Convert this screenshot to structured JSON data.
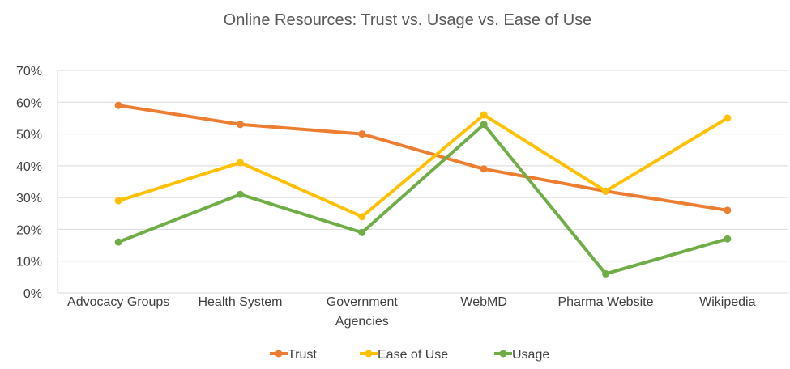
{
  "chart_data": {
    "type": "line",
    "title": "Online Resources: Trust vs. Usage vs. Ease of Use",
    "categories": [
      [
        "Advocacy Groups"
      ],
      [
        "Health System"
      ],
      [
        "Government",
        "Agencies"
      ],
      [
        "WebMD"
      ],
      [
        "Pharma Website"
      ],
      [
        "Wikipedia"
      ]
    ],
    "y_ticks": [
      "0%",
      "10%",
      "20%",
      "30%",
      "40%",
      "50%",
      "60%",
      "70%"
    ],
    "ylim": [
      0,
      0.7
    ],
    "grid": true,
    "legend_position": "bottom",
    "series": [
      {
        "name": "Trust",
        "color": "#ED7D31",
        "values": [
          0.59,
          0.53,
          0.5,
          0.39,
          0.32,
          0.26
        ]
      },
      {
        "name": "Ease of Use",
        "color": "#FFC000",
        "values": [
          0.29,
          0.41,
          0.24,
          0.56,
          0.32,
          0.55
        ]
      },
      {
        "name": "Usage",
        "color": "#70AD47",
        "values": [
          0.16,
          0.31,
          0.19,
          0.53,
          0.06,
          0.17
        ]
      }
    ]
  }
}
